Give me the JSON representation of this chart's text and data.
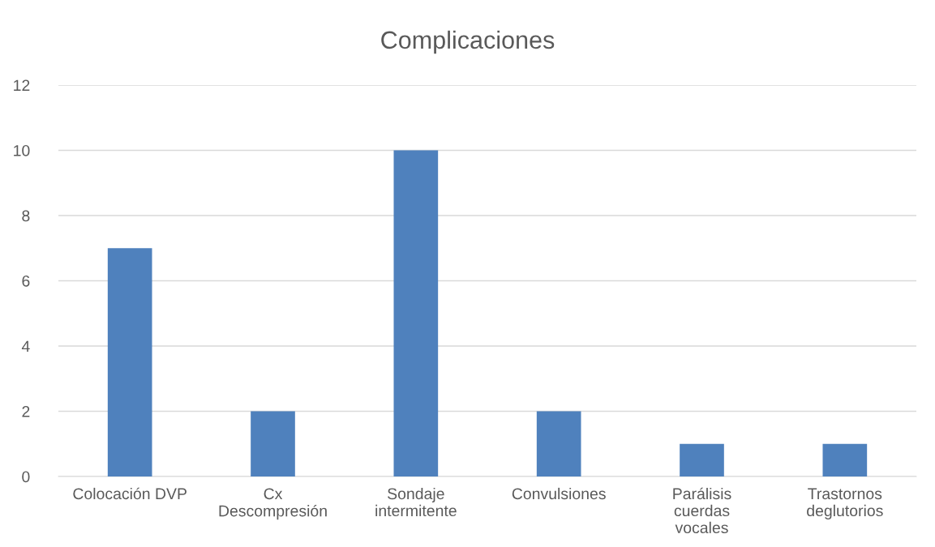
{
  "chart_data": {
    "type": "bar",
    "title": "Complicaciones",
    "categories": [
      "Colocación DVP",
      "Cx Descompresión",
      "Sondaje intermitente",
      "Convulsiones",
      "Parálisis cuerdas vocales",
      "Trastornos deglutorios"
    ],
    "values": [
      7,
      2,
      10,
      2,
      1,
      1
    ],
    "color": "#4f81bd",
    "ylim": [
      0,
      12
    ],
    "yticks": [
      0,
      2,
      4,
      6,
      8,
      10,
      12
    ],
    "grid": "y"
  }
}
